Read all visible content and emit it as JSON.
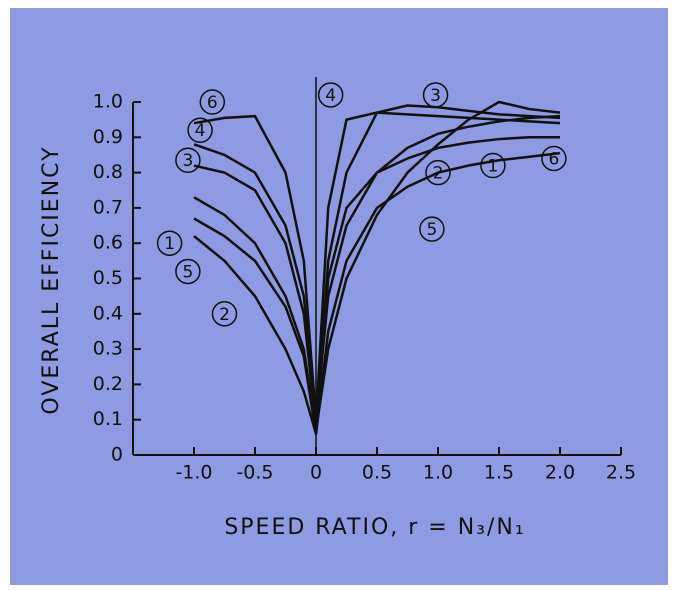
{
  "chart_data": {
    "type": "line",
    "xlabel": "SPEED RATIO, r = N₃/N₁",
    "ylabel": "OVERALL EFFICIENCY",
    "x": [
      -1.0,
      -0.75,
      -0.5,
      -0.25,
      -0.1,
      0,
      0.1,
      0.25,
      0.5,
      0.75,
      1.0,
      1.25,
      1.5,
      1.75,
      2.0
    ],
    "series": [
      {
        "name": "6",
        "color": "#111111",
        "values": [
          0.94,
          0.955,
          0.96,
          0.8,
          0.55,
          0.1,
          0.45,
          0.65,
          0.8,
          0.87,
          0.91,
          0.93,
          0.945,
          0.955,
          0.96
        ]
      },
      {
        "name": "4",
        "color": "#111111",
        "values": [
          0.88,
          0.85,
          0.8,
          0.65,
          0.45,
          0.1,
          0.7,
          0.95,
          0.97,
          0.965,
          0.96,
          0.955,
          0.95,
          0.945,
          0.94
        ]
      },
      {
        "name": "3",
        "color": "#111111",
        "values": [
          0.82,
          0.8,
          0.75,
          0.6,
          0.4,
          0.08,
          0.55,
          0.8,
          0.97,
          0.99,
          0.985,
          0.975,
          0.965,
          0.96,
          0.955
        ]
      },
      {
        "name": "1",
        "color": "#111111",
        "values": [
          0.67,
          0.62,
          0.55,
          0.42,
          0.28,
          0.06,
          0.35,
          0.55,
          0.7,
          0.76,
          0.8,
          0.82,
          0.835,
          0.845,
          0.855
        ]
      },
      {
        "name": "5",
        "color": "#111111",
        "values": [
          0.73,
          0.68,
          0.6,
          0.45,
          0.3,
          0.07,
          0.3,
          0.5,
          0.68,
          0.8,
          0.88,
          0.95,
          1.0,
          0.98,
          0.97
        ]
      },
      {
        "name": "2",
        "color": "#111111",
        "values": [
          0.62,
          0.55,
          0.45,
          0.3,
          0.18,
          0.06,
          0.5,
          0.7,
          0.8,
          0.84,
          0.87,
          0.885,
          0.895,
          0.9,
          0.9
        ]
      }
    ],
    "xlim": [
      -1.5,
      2.5
    ],
    "xticks": [
      {
        "value": -1,
        "label": "-1.0"
      },
      -0.5,
      0,
      0.5,
      {
        "value": 1,
        "label": "1.0"
      },
      1.5,
      {
        "value": 2,
        "label": "2.0"
      },
      2.5
    ],
    "ylim": [
      0,
      1
    ],
    "yticks": [
      0,
      0.1,
      0.2,
      0.3,
      0.4,
      0.5,
      0.6,
      0.7,
      0.8,
      0.9,
      {
        "value": 1,
        "label": "1.0"
      }
    ]
  }
}
